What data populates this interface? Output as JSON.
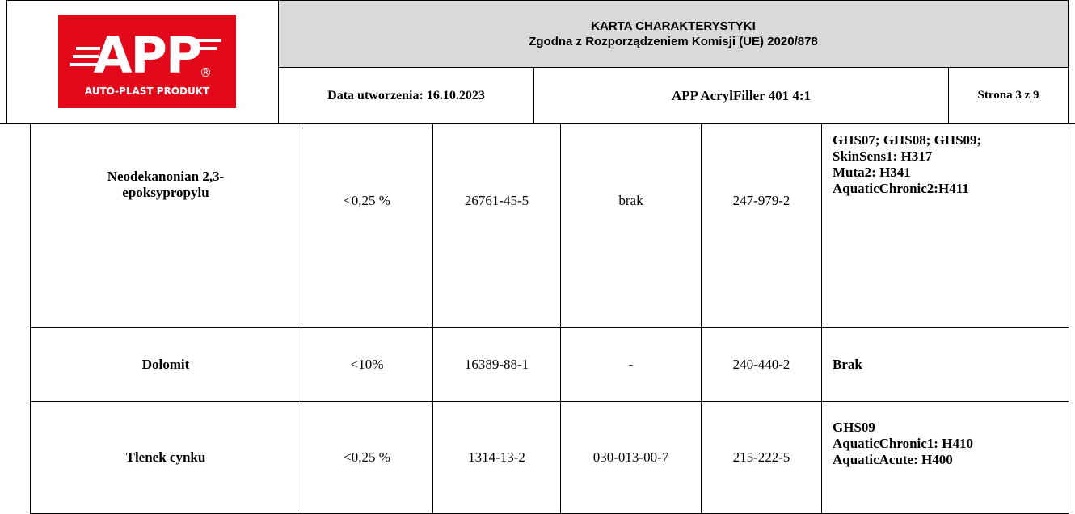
{
  "header": {
    "logo": {
      "text": "APP",
      "registered": "®",
      "subtitle": "AUTO-PLAST PRODUKT"
    },
    "title": [
      "KARTA CHARAKTERYSTYKI",
      "Zgodna  z Rozporządzeniem Komisji (UE) 2020/878"
    ],
    "date": "Data utworzenia: 16.10.2023",
    "product": "APP AcrylFiller 401 4:1",
    "page": "Strona 3 z 9"
  },
  "table": {
    "rows": [
      {
        "name": [
          "Neodekanonian 2,3-",
          "epoksypropylu"
        ],
        "concentration": "<0,25 %",
        "cas": "26761-45-5",
        "index": "brak",
        "ec": "247-979-2",
        "hazard": [
          "GHS07; GHS08; GHS09;",
          "SkinSens1: H317",
          "Muta2: H341",
          "AquaticChronic2:H411"
        ]
      },
      {
        "name": [
          "Dolomit"
        ],
        "concentration": "<10%",
        "cas": "16389-88-1",
        "index": "-",
        "ec": "240-440-2",
        "hazard": [
          "Brak"
        ]
      },
      {
        "name": [
          "Tlenek cynku"
        ],
        "concentration": "<0,25 %",
        "cas": "1314-13-2",
        "index": "030-013-00-7",
        "ec": "215-222-5",
        "hazard": [
          "GHS09",
          "AquaticChronic1: H410",
          "AquaticAcute: H400"
        ]
      }
    ]
  }
}
